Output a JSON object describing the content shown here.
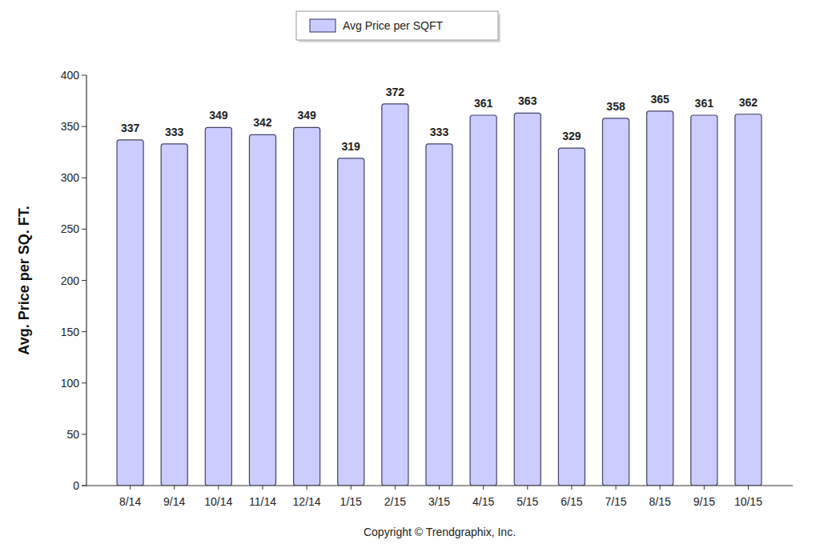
{
  "chart_data": {
    "type": "bar",
    "y_label": "Avg. Price per SQ. FT.",
    "categories": [
      "8/14",
      "9/14",
      "10/14",
      "11/14",
      "12/14",
      "1/15",
      "2/15",
      "3/15",
      "4/15",
      "5/15",
      "6/15",
      "7/15",
      "8/15",
      "9/15",
      "10/15"
    ],
    "series": [
      {
        "name": "Avg Price per SQFT",
        "color": "#ccccff",
        "values": [
          337,
          333,
          349,
          342,
          349,
          319,
          372,
          333,
          361,
          363,
          329,
          358,
          365,
          361,
          362
        ]
      }
    ],
    "ylim": [
      0,
      400
    ],
    "yticks": [
      0,
      50,
      100,
      150,
      200,
      250,
      300,
      350,
      400
    ],
    "grid": false,
    "legend": "top",
    "data_labels": true,
    "annotations": [
      "Copyright © Trendgraphix, Inc."
    ]
  }
}
